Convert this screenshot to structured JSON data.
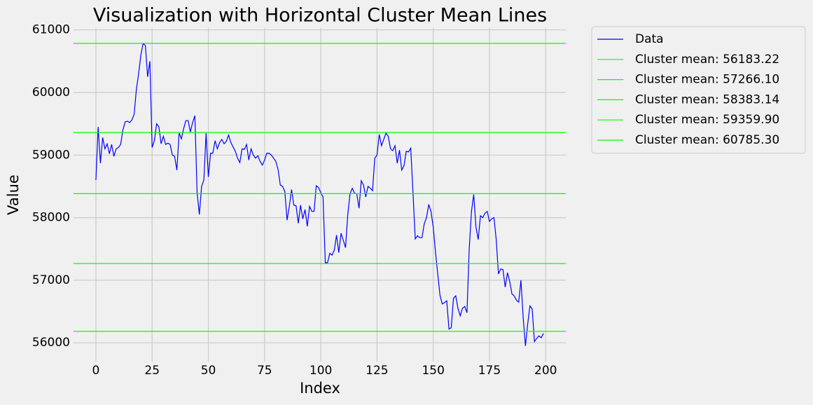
{
  "chart_data": {
    "type": "line",
    "title": "Visualization with Horizontal Cluster Mean Lines",
    "xlabel": "Index",
    "ylabel": "Value",
    "series": [
      {
        "name": "Data",
        "color": "#0000ff",
        "values": [
          58600,
          59450,
          58870,
          59280,
          59100,
          59180,
          59020,
          59170,
          58980,
          59100,
          59120,
          59170,
          59400,
          59530,
          59540,
          59520,
          59560,
          59650,
          60050,
          60300,
          60600,
          60785,
          60750,
          60250,
          60500,
          59120,
          59230,
          59500,
          59450,
          59180,
          59300,
          59170,
          59190,
          59170,
          59000,
          58980,
          58760,
          59350,
          59260,
          59420,
          59550,
          59550,
          59370,
          59520,
          59630,
          58400,
          58050,
          58500,
          58600,
          59350,
          58650,
          59030,
          59030,
          59230,
          59100,
          59200,
          59250,
          59180,
          59220,
          59320,
          59200,
          59130,
          59060,
          58950,
          58880,
          59100,
          59090,
          59170,
          58920,
          59100,
          59000,
          58950,
          58990,
          58900,
          58840,
          58920,
          59030,
          59030,
          59000,
          58950,
          58900,
          58770,
          58520,
          58500,
          58420,
          57960,
          58180,
          58450,
          58200,
          58190,
          57910,
          58200,
          57980,
          58130,
          57860,
          58180,
          58100,
          58100,
          58510,
          58480,
          58400,
          58330,
          57280,
          57280,
          57430,
          57400,
          57480,
          57720,
          57440,
          57750,
          57640,
          57520,
          58050,
          58380,
          58470,
          58390,
          58380,
          58150,
          58590,
          58520,
          58330,
          58500,
          58470,
          58430,
          58950,
          59000,
          59330,
          59150,
          59250,
          59350,
          59300,
          59100,
          59070,
          59150,
          58870,
          59080,
          58760,
          58830,
          59060,
          59050,
          59110,
          58400,
          57660,
          57710,
          57680,
          57680,
          57900,
          58000,
          58210,
          58100,
          57850,
          57450,
          57100,
          56760,
          56620,
          56640,
          56670,
          56220,
          56240,
          56710,
          56750,
          56550,
          56430,
          56550,
          56580,
          56480,
          57500,
          58100,
          58370,
          57850,
          57650,
          58030,
          58000,
          58070,
          58100,
          57940,
          57980,
          58000,
          57650,
          57100,
          57180,
          57170,
          56890,
          57120,
          56980,
          56780,
          56750,
          56680,
          56650,
          57000,
          56400,
          55950,
          56300,
          56590,
          56540,
          56020,
          56070,
          56110,
          56080,
          56150
        ]
      }
    ],
    "hlines": [
      {
        "name": "Cluster mean: 56183.22",
        "value": 56183.22,
        "color": "#00ff00"
      },
      {
        "name": "Cluster mean: 57266.10",
        "value": 57266.1,
        "color": "#00ff00"
      },
      {
        "name": "Cluster mean: 58383.14",
        "value": 58383.14,
        "color": "#00ff00"
      },
      {
        "name": "Cluster mean: 59359.90",
        "value": 59359.9,
        "color": "#00ff00"
      },
      {
        "name": "Cluster mean: 60785.30",
        "value": 60785.3,
        "color": "#00ff00"
      }
    ],
    "xlim": [
      -9.95,
      208.95
    ],
    "xticks": [
      0,
      25,
      50,
      75,
      100,
      125,
      150,
      175,
      200
    ],
    "ylim": [
      55700,
      61030
    ],
    "yticks": [
      56000,
      57000,
      58000,
      59000,
      60000,
      61000
    ],
    "grid": true,
    "legend": "outside upper right"
  }
}
